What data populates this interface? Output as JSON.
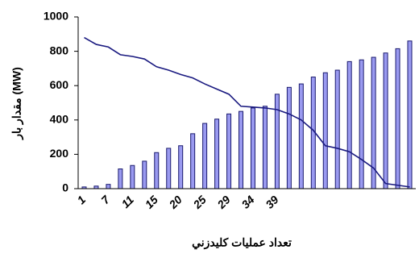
{
  "chart_data": {
    "type": "bar_line",
    "ylabel": "مقدار بار (MW)",
    "xlabel": "تعداد عمليات كليدزني",
    "categories": [
      "1",
      null,
      "7",
      null,
      "11",
      null,
      "15",
      null,
      "20",
      null,
      "25",
      null,
      "29",
      null,
      "34",
      null,
      "39",
      null,
      null,
      null,
      null,
      null,
      null,
      null,
      null,
      null,
      null,
      null
    ],
    "series": [
      {
        "type": "bar",
        "color": "#9a9af0",
        "edge": "#1a1a6e",
        "values": [
          10,
          15,
          25,
          115,
          135,
          160,
          210,
          235,
          250,
          320,
          380,
          405,
          435,
          450,
          470,
          480,
          550,
          590,
          610,
          650,
          675,
          690,
          740,
          750,
          765,
          790,
          815,
          860
        ]
      },
      {
        "type": "line",
        "color": "#1a1a80",
        "values": [
          880,
          840,
          825,
          780,
          770,
          755,
          710,
          690,
          665,
          645,
          610,
          580,
          550,
          480,
          475,
          470,
          460,
          435,
          400,
          340,
          250,
          235,
          215,
          170,
          120,
          30,
          20,
          10
        ]
      }
    ],
    "ylim": [
      0,
      1000
    ],
    "yticks": [
      0,
      200,
      400,
      600,
      800,
      1000
    ]
  }
}
